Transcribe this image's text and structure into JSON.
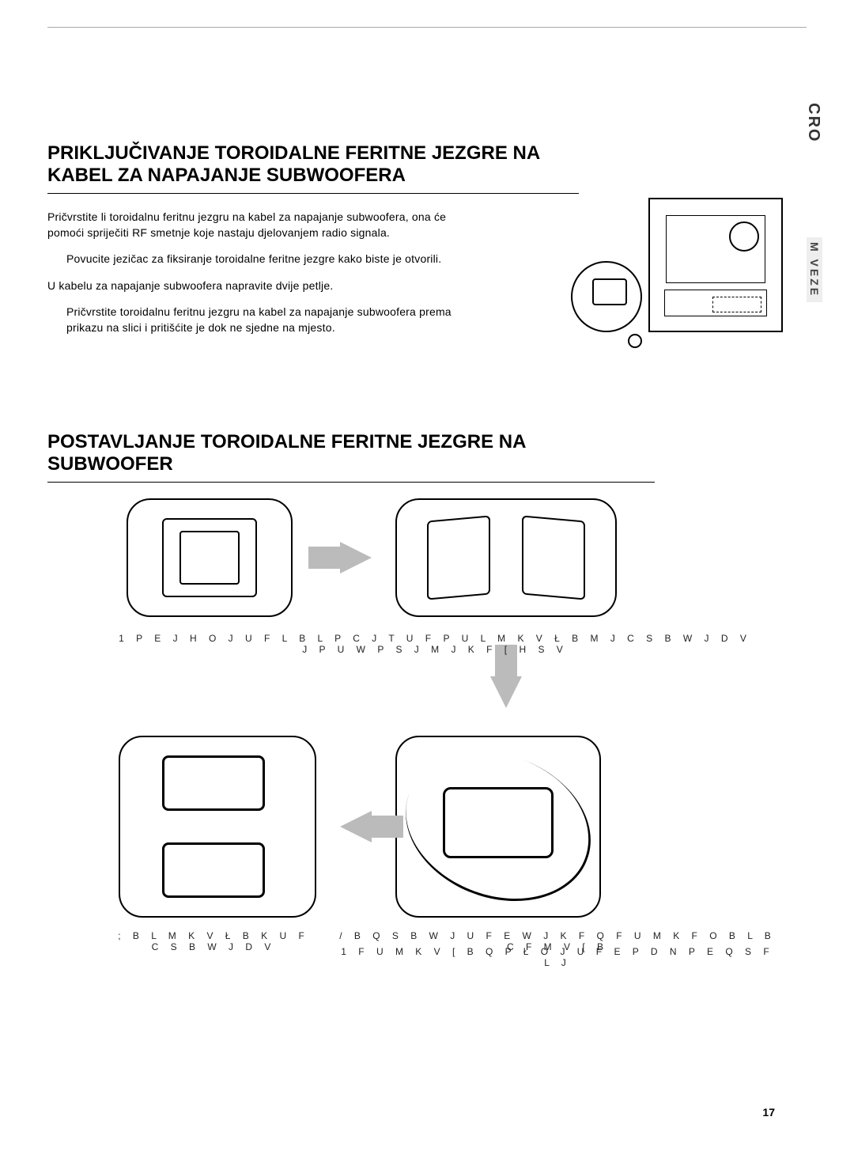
{
  "language_tab": "CRO",
  "side_tab": "M VEZE",
  "page_number": "17",
  "section1": {
    "title": "PRIKLJUČIVANJE TOROIDALNE FERITNE JEZGRE NA KABEL ZA NAPAJANJE SUBWOOFERA",
    "p1": "Pričvrstite li toroidalnu feritnu jezgru na kabel za napajanje subwoofera, ona će pomoći spriječiti RF smetnje koje nastaju djelovanjem radio signala.",
    "p2": "Povucite jezičac za fiksiranje toroidalne feritne jezgre kako biste je otvorili.",
    "p3": "U kabelu za napajanje subwoofera napravite dvije petlje.",
    "p4": "Pričvrstite toroidalnu feritnu jezgru na kabel za napajanje subwoofera prema prikazu na slici i pritišćite je dok ne sjedne na mjesto."
  },
  "section2": {
    "title": "POSTAVLJANJE TOROIDALNE FERITNE JEZGRE NA SUBWOOFER",
    "step1": "1 P E J H O J U F   L B L P   C J T U F   P U L M K V Ł B M J   C S B W J D V   J   P U W P S J M J   K F [ H S V",
    "step3": "; B L M K V Ł B K U F   C S B W J D V",
    "step4a": "/ B Q S B W J U F   E W J K F   Q F U M K F   O B   L B C F M V   [ B",
    "step4b": "1 F U M K V   [ B Q P Ł O J U F       E P       D N   P E   Q S F L J"
  },
  "colors": {
    "arrow_fill": "#bbbbbb",
    "line": "#000000",
    "side_tab_bg": "#eeeeee"
  }
}
